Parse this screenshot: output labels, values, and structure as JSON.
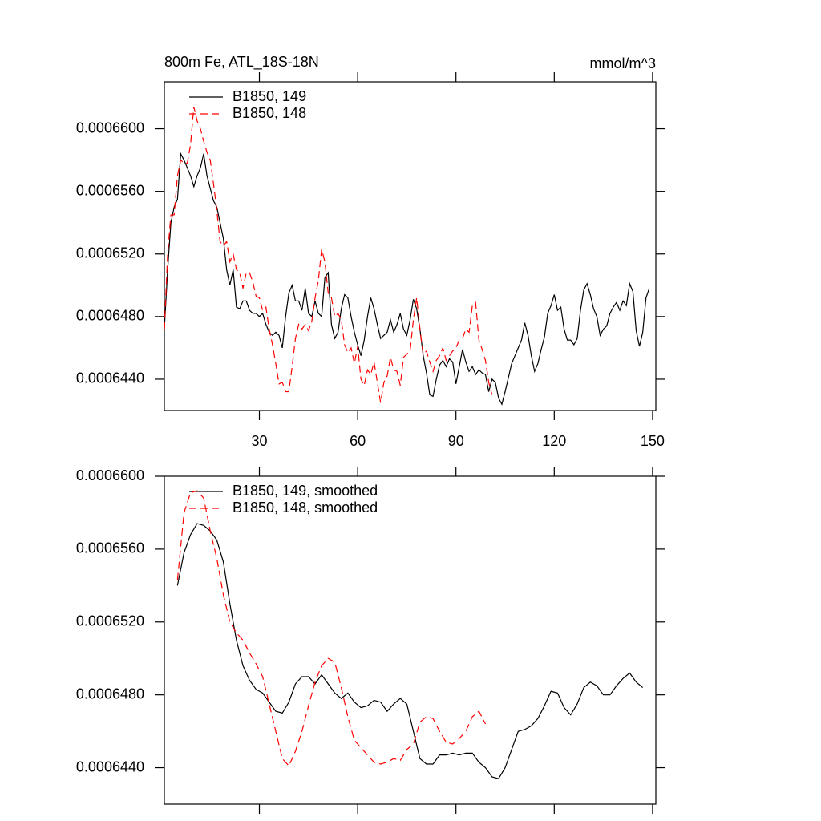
{
  "chart_data": [
    {
      "type": "line",
      "title": "800m Fe, ATL_18S-18N",
      "units": "mmol/m^3",
      "x": [
        1,
        2,
        3,
        4,
        5,
        6,
        7,
        8,
        9,
        10,
        11,
        12,
        13,
        14,
        15,
        16,
        17,
        18,
        19,
        20,
        21,
        22,
        23,
        24,
        25,
        26,
        27,
        28,
        29,
        30,
        31,
        32,
        33,
        34,
        35,
        36,
        37,
        38,
        39,
        40,
        41,
        42,
        43,
        44,
        45,
        46,
        47,
        48,
        49,
        50,
        51,
        52,
        53,
        54,
        55,
        56,
        57,
        58,
        59,
        60,
        61,
        62,
        63,
        64,
        65,
        66,
        67,
        68,
        69,
        70,
        71,
        72,
        73,
        74,
        75,
        76,
        77,
        78,
        79,
        80,
        81,
        82,
        83,
        84,
        85,
        86,
        87,
        88,
        89,
        90,
        91,
        92,
        93,
        94,
        95,
        96,
        97,
        98,
        99,
        100,
        101,
        102,
        103,
        104,
        105,
        106,
        107,
        108,
        109,
        110,
        111,
        112,
        113,
        114,
        115,
        116,
        117,
        118,
        119,
        120,
        121,
        122,
        123,
        124,
        125,
        126,
        127,
        128,
        129,
        130,
        131,
        132,
        133,
        134,
        135,
        136,
        137,
        138,
        139,
        140,
        141,
        142,
        143,
        144,
        145,
        146,
        147,
        148,
        149
      ],
      "series": [
        {
          "name": "B1850, 149",
          "color": "#000000",
          "style": "solid",
          "values": [
            0.0006472,
            0.000651,
            0.000654,
            0.000655,
            0.0006555,
            0.0006584,
            0.000658,
            0.0006575,
            0.000657,
            0.0006563,
            0.000657,
            0.0006575,
            0.0006584,
            0.000657,
            0.0006562,
            0.0006554,
            0.000655,
            0.000654,
            0.000653,
            0.000651,
            0.00065,
            0.000651,
            0.0006486,
            0.0006485,
            0.000649,
            0.000649,
            0.0006484,
            0.0006482,
            0.0006482,
            0.000648,
            0.0006482,
            0.0006475,
            0.000647,
            0.0006468,
            0.000647,
            0.0006468,
            0.000646,
            0.000648,
            0.0006495,
            0.00065,
            0.000649,
            0.000649,
            0.0006484,
            0.0006498,
            0.0006482,
            0.000648,
            0.000649,
            0.0006482,
            0.000648,
            0.0006505,
            0.0006508,
            0.0006475,
            0.0006466,
            0.000647,
            0.0006485,
            0.0006494,
            0.0006492,
            0.000648,
            0.000647,
            0.0006462,
            0.0006455,
            0.0006465,
            0.000648,
            0.0006492,
            0.0006485,
            0.0006475,
            0.0006466,
            0.0006468,
            0.000647,
            0.0006478,
            0.000647,
            0.0006475,
            0.0006482,
            0.0006472,
            0.0006468,
            0.0006478,
            0.0006491,
            0.0006485,
            0.0006472,
            0.0006455,
            0.0006444,
            0.000643,
            0.0006429,
            0.000644,
            0.0006449,
            0.0006452,
            0.0006448,
            0.0006453,
            0.0006451,
            0.0006437,
            0.0006448,
            0.0006459,
            0.0006451,
            0.0006445,
            0.0006448,
            0.0006443,
            0.0006446,
            0.0006444,
            0.0006443,
            0.0006432,
            0.000644,
            0.0006438,
            0.0006428,
            0.0006424,
            0.0006432,
            0.0006441,
            0.000645,
            0.0006455,
            0.000646,
            0.0006465,
            0.0006476,
            0.0006468,
            0.0006455,
            0.0006445,
            0.000645,
            0.0006459,
            0.0006467,
            0.0006482,
            0.0006487,
            0.0006494,
            0.0006484,
            0.0006486,
            0.0006472,
            0.0006465,
            0.0006465,
            0.0006462,
            0.0006466,
            0.0006484,
            0.0006497,
            0.0006501,
            0.0006494,
            0.0006485,
            0.000648,
            0.0006468,
            0.0006472,
            0.0006474,
            0.0006482,
            0.0006486,
            0.0006489,
            0.0006484,
            0.000649,
            0.0006487,
            0.0006501,
            0.0006496,
            0.0006471,
            0.0006461,
            0.000647,
            0.0006492,
            0.0006498
          ]
        },
        {
          "name": "B1850, 148",
          "color": "#ff0000",
          "style": "dashed",
          "values": [
            0.0006472,
            0.000652,
            0.0006545,
            0.0006545,
            0.000657,
            0.000658,
            0.0006578,
            0.0006578,
            0.000659,
            0.0006614,
            0.0006605,
            0.00066,
            0.0006592,
            0.0006585,
            0.000658,
            0.0006565,
            0.0006548,
            0.0006528,
            0.0006525,
            0.0006528,
            0.0006515,
            0.000652,
            0.000651,
            0.0006508,
            0.0006498,
            0.0006508,
            0.0006508,
            0.0006502,
            0.0006493,
            0.0006492,
            0.0006484,
            0.0006486,
            0.0006472,
            0.0006462,
            0.000645,
            0.0006437,
            0.0006438,
            0.0006432,
            0.0006432,
            0.0006448,
            0.0006466,
            0.0006475,
            0.0006472,
            0.0006475,
            0.0006471,
            0.0006477,
            0.0006492,
            0.0006503,
            0.0006523,
            0.0006515,
            0.0006495,
            0.0006492,
            0.000648,
            0.0006482,
            0.0006478,
            0.0006462,
            0.0006457,
            0.000646,
            0.000645,
            0.0006461,
            0.000644,
            0.0006436,
            0.0006446,
            0.0006443,
            0.0006451,
            0.0006438,
            0.0006425,
            0.0006438,
            0.0006442,
            0.0006454,
            0.0006446,
            0.0006445,
            0.0006436,
            0.0006454,
            0.0006456,
            0.0006458,
            0.0006478,
            0.0006492,
            0.0006472,
            0.0006456,
            0.0006458,
            0.0006451,
            0.0006445,
            0.0006452,
            0.0006455,
            0.000646,
            0.0006452,
            0.0006455,
            0.0006458,
            0.000646,
            0.0006465,
            0.0006466,
            0.0006472,
            0.000647,
            0.0006487,
            0.0006489,
            0.0006465,
            0.0006459,
            0.0006452,
            0.0006438,
            0.000643,
            null,
            null,
            null,
            null,
            null,
            null,
            null,
            null,
            null,
            null,
            null,
            null,
            null,
            null,
            null,
            null,
            null,
            null,
            null,
            null,
            null,
            null,
            null,
            null,
            null,
            null,
            null,
            null,
            null,
            null,
            null,
            null,
            null,
            null,
            null,
            null,
            null,
            null,
            null,
            null,
            null,
            null,
            null,
            null,
            null,
            null,
            null,
            null
          ]
        }
      ],
      "xlim": [
        1,
        151
      ],
      "xticks": [
        30,
        60,
        90,
        120,
        150
      ],
      "xtick_labels": true,
      "ylim": [
        0.000642,
        0.000663
      ],
      "yticks": [
        {
          "value": 0.00066,
          "label": "0.0006600"
        },
        {
          "value": 0.000656,
          "label": "0.0006560"
        },
        {
          "value": 0.000652,
          "label": "0.0006520"
        },
        {
          "value": 0.000648,
          "label": "0.0006480"
        },
        {
          "value": 0.000644,
          "label": "0.0006440"
        }
      ],
      "legend": "upper left"
    },
    {
      "type": "line",
      "x": [
        5,
        7,
        9,
        11,
        13,
        15,
        17,
        19,
        21,
        23,
        25,
        27,
        29,
        31,
        33,
        35,
        37,
        39,
        41,
        43,
        45,
        47,
        49,
        51,
        53,
        55,
        57,
        59,
        61,
        63,
        65,
        67,
        69,
        71,
        73,
        75,
        77,
        79,
        81,
        83,
        85,
        87,
        89,
        91,
        93,
        95,
        97,
        99,
        101,
        103,
        105,
        107,
        109,
        111,
        113,
        115,
        117,
        119,
        121,
        123,
        125,
        127,
        129,
        131,
        133,
        135,
        137,
        139,
        141,
        143,
        145,
        147
      ],
      "series": [
        {
          "name": "B1850, 149, smoothed",
          "color": "#000000",
          "style": "solid",
          "values": [
            0.000654,
            0.0006558,
            0.0006568,
            0.0006574,
            0.0006573,
            0.000657,
            0.0006565,
            0.0006553,
            0.000653,
            0.000651,
            0.0006496,
            0.0006488,
            0.0006483,
            0.0006481,
            0.0006476,
            0.0006471,
            0.000647,
            0.0006476,
            0.0006486,
            0.000649,
            0.000649,
            0.0006486,
            0.0006491,
            0.0006486,
            0.0006481,
            0.0006478,
            0.0006481,
            0.0006476,
            0.0006473,
            0.0006474,
            0.0006477,
            0.0006476,
            0.0006471,
            0.0006475,
            0.0006478,
            0.0006475,
            0.000646,
            0.0006445,
            0.0006442,
            0.0006442,
            0.0006447,
            0.0006447,
            0.0006448,
            0.0006447,
            0.0006448,
            0.0006448,
            0.0006443,
            0.000644,
            0.0006435,
            0.0006434,
            0.000644,
            0.000645,
            0.000646,
            0.0006461,
            0.0006463,
            0.0006467,
            0.0006474,
            0.0006482,
            0.0006481,
            0.0006473,
            0.0006469,
            0.0006475,
            0.0006484,
            0.0006487,
            0.0006485,
            0.000648,
            0.000648,
            0.0006485,
            0.0006489,
            0.0006492,
            0.0006487,
            0.0006484
          ]
        },
        {
          "name": "B1850, 148, smoothed",
          "color": "#ff0000",
          "style": "dashed",
          "values": [
            0.0006543,
            0.000658,
            0.0006591,
            0.0006592,
            0.0006588,
            0.000657,
            0.0006555,
            0.0006535,
            0.000652,
            0.0006514,
            0.000651,
            0.0006503,
            0.0006497,
            0.000649,
            0.0006475,
            0.000646,
            0.0006445,
            0.0006441,
            0.0006449,
            0.000646,
            0.0006474,
            0.0006487,
            0.0006496,
            0.00065,
            0.0006498,
            0.0006484,
            0.0006468,
            0.0006455,
            0.0006451,
            0.0006447,
            0.0006443,
            0.0006442,
            0.0006443,
            0.0006445,
            0.0006444,
            0.000645,
            0.0006453,
            0.0006465,
            0.0006468,
            0.0006467,
            0.000646,
            0.0006454,
            0.0006453,
            0.0006456,
            0.000646,
            0.0006468,
            0.0006471,
            0.0006464,
            null,
            null,
            null,
            null,
            null,
            null,
            null,
            null,
            null,
            null,
            null,
            null,
            null,
            null,
            null,
            null,
            null,
            null,
            null,
            null,
            null,
            null,
            null,
            null
          ]
        }
      ],
      "xlim": [
        1,
        151
      ],
      "xticks": [
        30,
        60,
        90,
        120,
        150
      ],
      "xtick_labels": false,
      "ylim": [
        0.000642,
        0.00066
      ],
      "yticks": [
        {
          "value": 0.00066,
          "label": "0.0006600"
        },
        {
          "value": 0.000656,
          "label": "0.0006560"
        },
        {
          "value": 0.000652,
          "label": "0.0006520"
        },
        {
          "value": 0.000648,
          "label": "0.0006480"
        },
        {
          "value": 0.000644,
          "label": "0.0006440"
        }
      ],
      "legend": "upper left"
    }
  ]
}
